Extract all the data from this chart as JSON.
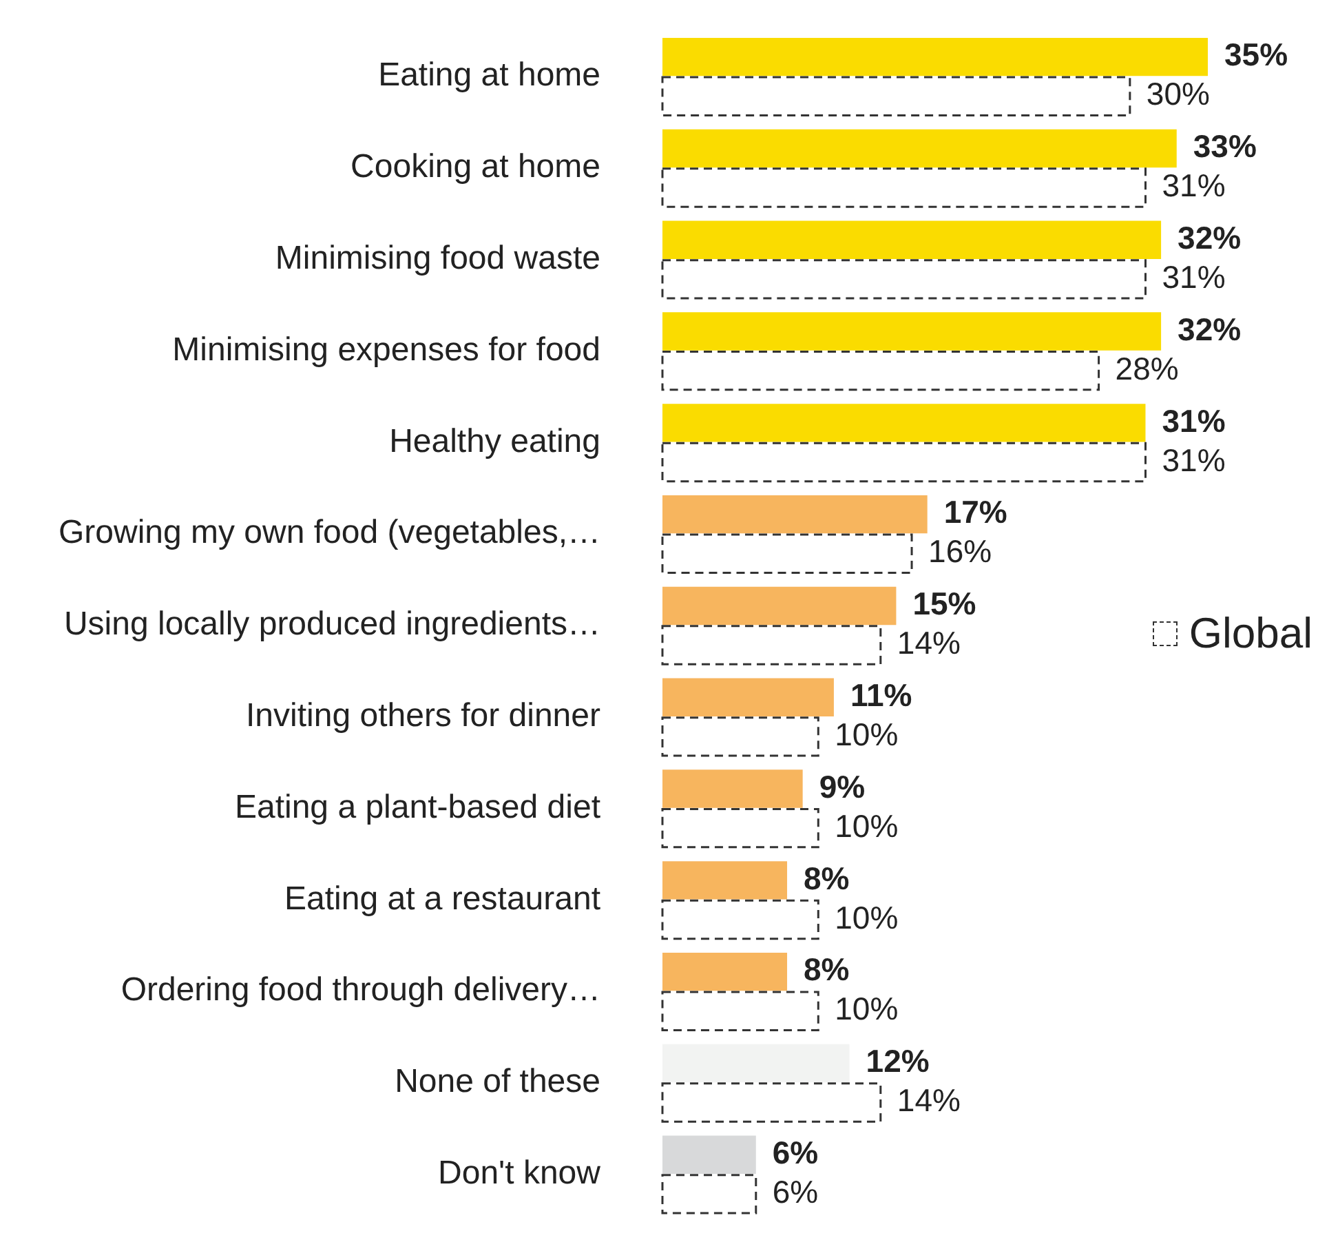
{
  "chart_data": {
    "type": "bar",
    "orientation": "horizontal",
    "categories": [
      "Eating at home",
      "Cooking at home",
      "Minimising food waste",
      "Minimising expenses for food",
      "Healthy eating",
      "Growing my own food (vegetables,…",
      "Using locally produced ingredients…",
      "Inviting others for dinner",
      "Eating a plant-based diet",
      "Eating at a restaurant",
      "Ordering food through delivery…",
      "None of these",
      "Don't know"
    ],
    "series": [
      {
        "values": [
          35,
          33,
          32,
          32,
          31,
          17,
          15,
          11,
          9,
          8,
          8,
          12,
          6
        ],
        "colors": [
          "#fadc00",
          "#fadc00",
          "#fadc00",
          "#fadc00",
          "#fadc00",
          "#f7b55e",
          "#f7b55e",
          "#f7b55e",
          "#f7b55e",
          "#f7b55e",
          "#f7b55e",
          "#f2f3f2",
          "#d8d9da"
        ],
        "value_labels": [
          "35%",
          "33%",
          "32%",
          "32%",
          "31%",
          "17%",
          "15%",
          "11%",
          "9%",
          "8%",
          "8%",
          "12%",
          "6%"
        ]
      },
      {
        "name": "Global",
        "color": "#333333",
        "line_style": "dashed",
        "values": [
          30,
          31,
          31,
          28,
          31,
          16,
          14,
          10,
          10,
          10,
          10,
          14,
          6
        ],
        "value_labels": [
          "30%",
          "31%",
          "31%",
          "28%",
          "31%",
          "16%",
          "14%",
          "10%",
          "10%",
          "10%",
          "10%",
          "14%",
          "6%"
        ]
      }
    ],
    "legend": "right",
    "tick_labels": "y"
  }
}
